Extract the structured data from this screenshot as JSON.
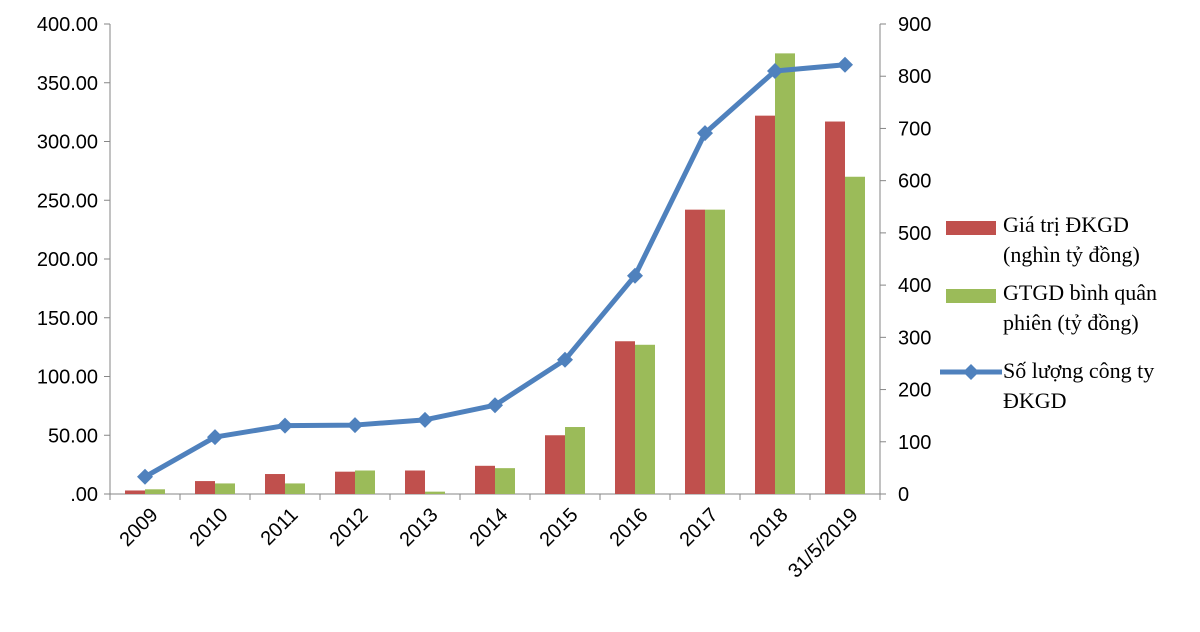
{
  "chart_data": {
    "type": "bar-line-combo",
    "categories": [
      "2009",
      "2010",
      "2011",
      "2012",
      "2013",
      "2014",
      "2015",
      "2016",
      "2017",
      "2018",
      "31/5/2019"
    ],
    "series": [
      {
        "name_lines": [
          "Giá trị ĐKGD",
          "(nghìn tỷ đồng)"
        ],
        "kind": "bar",
        "axis": "left",
        "color": "#C0504D",
        "values": [
          3,
          11,
          17,
          19,
          20,
          24,
          50,
          130,
          242,
          322,
          317
        ]
      },
      {
        "name_lines": [
          "GTGD bình quân",
          "phiên (tỷ đồng)"
        ],
        "kind": "bar",
        "axis": "left",
        "color": "#9BBB59",
        "values": [
          4,
          9,
          9,
          20,
          2,
          22,
          57,
          127,
          242,
          375,
          270
        ]
      },
      {
        "name_lines": [
          "Số lượng công ty",
          "ĐKGD"
        ],
        "kind": "line",
        "axis": "right",
        "color": "#4F81BD",
        "values": [
          33,
          109,
          131,
          132,
          142,
          170,
          257,
          418,
          691,
          810,
          822
        ]
      }
    ],
    "y_left": {
      "min": 0,
      "max": 400,
      "ticks": [
        0,
        50,
        100,
        150,
        200,
        250,
        300,
        350,
        400
      ],
      "tick_labels": [
        ".00",
        "50.00",
        "100.00",
        "150.00",
        "200.00",
        "250.00",
        "300.00",
        "350.00",
        "400.00"
      ]
    },
    "y_right": {
      "min": 0,
      "max": 900,
      "ticks": [
        0,
        100,
        200,
        300,
        400,
        500,
        600,
        700,
        800,
        900
      ],
      "tick_labels": [
        "0",
        "100",
        "200",
        "300",
        "400",
        "500",
        "600",
        "700",
        "800",
        "900"
      ]
    },
    "grid": false,
    "legend_position": "right"
  }
}
